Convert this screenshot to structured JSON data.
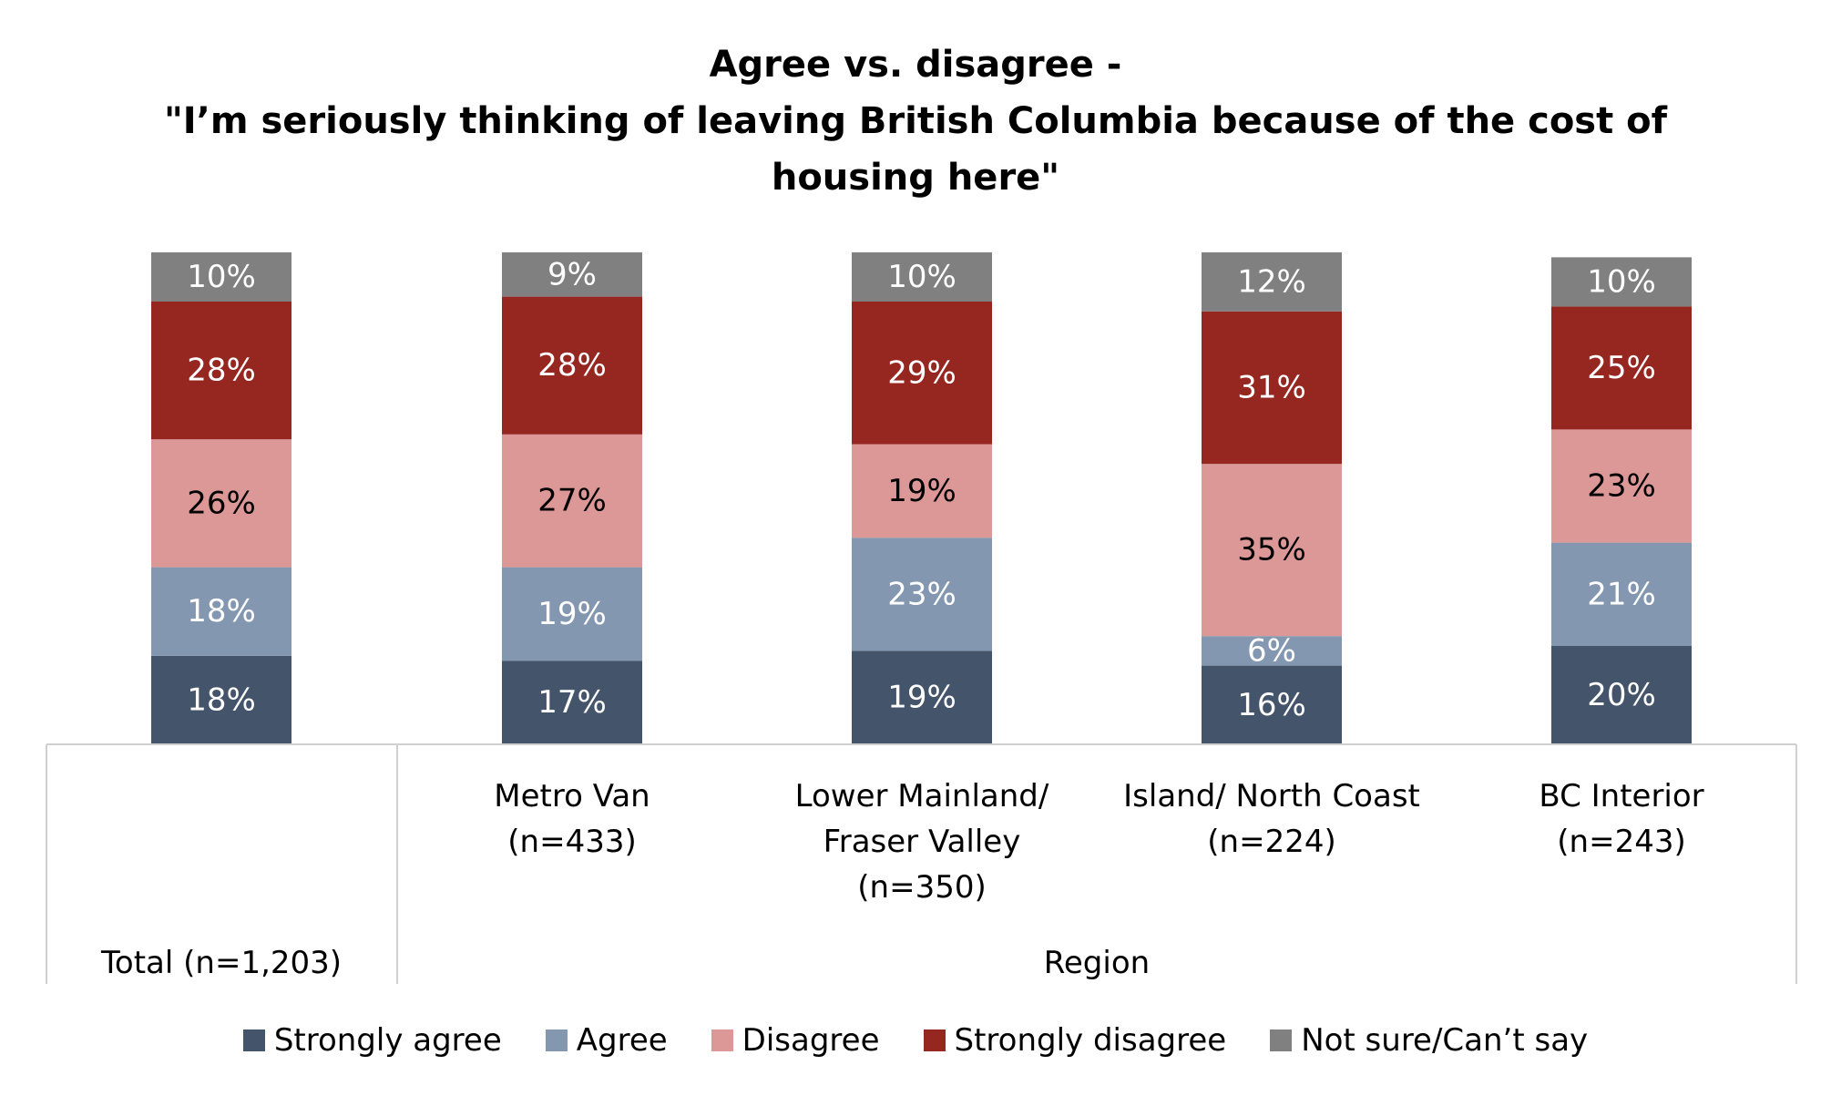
{
  "chart_data": {
    "type": "bar",
    "stacked": true,
    "title_lines": [
      "Agree vs. disagree -",
      "\"I’m seriously thinking of leaving British Columbia because of the cost of",
      "housing here\""
    ],
    "categories": [
      {
        "label_lines": [
          "Total (n=1,203)"
        ],
        "group": ""
      },
      {
        "label_lines": [
          "Metro Van",
          "(n=433)"
        ],
        "group": "Region"
      },
      {
        "label_lines": [
          "Lower Mainland/",
          "Fraser Valley",
          "(n=350)"
        ],
        "group": "Region"
      },
      {
        "label_lines": [
          "Island/ North Coast",
          "(n=224)"
        ],
        "group": "Region"
      },
      {
        "label_lines": [
          "BC Interior",
          "(n=243)"
        ],
        "group": "Region"
      }
    ],
    "group_label": "Region",
    "series": [
      {
        "name": "Strongly agree",
        "color": "#44546a",
        "text_color": "#ffffff",
        "values": [
          18,
          17,
          19,
          16,
          20
        ],
        "labels": [
          "18%",
          "17%",
          "19%",
          "16%",
          "20%"
        ]
      },
      {
        "name": "Agree",
        "color": "#8497b0",
        "text_color": "#ffffff",
        "values": [
          18,
          19,
          23,
          6,
          21
        ],
        "labels": [
          "18%",
          "19%",
          "23%",
          "6%",
          "21%"
        ]
      },
      {
        "name": "Disagree",
        "color": "#dc9797",
        "text_color": "#000000",
        "values": [
          26,
          27,
          19,
          35,
          23
        ],
        "labels": [
          "26%",
          "27%",
          "19%",
          "35%",
          "23%"
        ]
      },
      {
        "name": "Strongly disagree",
        "color": "#962620",
        "text_color": "#ffffff",
        "values": [
          28,
          28,
          29,
          31,
          25
        ],
        "labels": [
          "28%",
          "28%",
          "29%",
          "31%",
          "25%"
        ]
      },
      {
        "name": "Not sure/Can’t say",
        "color": "#808080",
        "text_color": "#ffffff",
        "values": [
          10,
          9,
          10,
          12,
          10
        ],
        "labels": [
          "10%",
          "9%",
          "10%",
          "12%",
          "10%"
        ]
      }
    ],
    "legend_position": "bottom",
    "grid": false
  }
}
